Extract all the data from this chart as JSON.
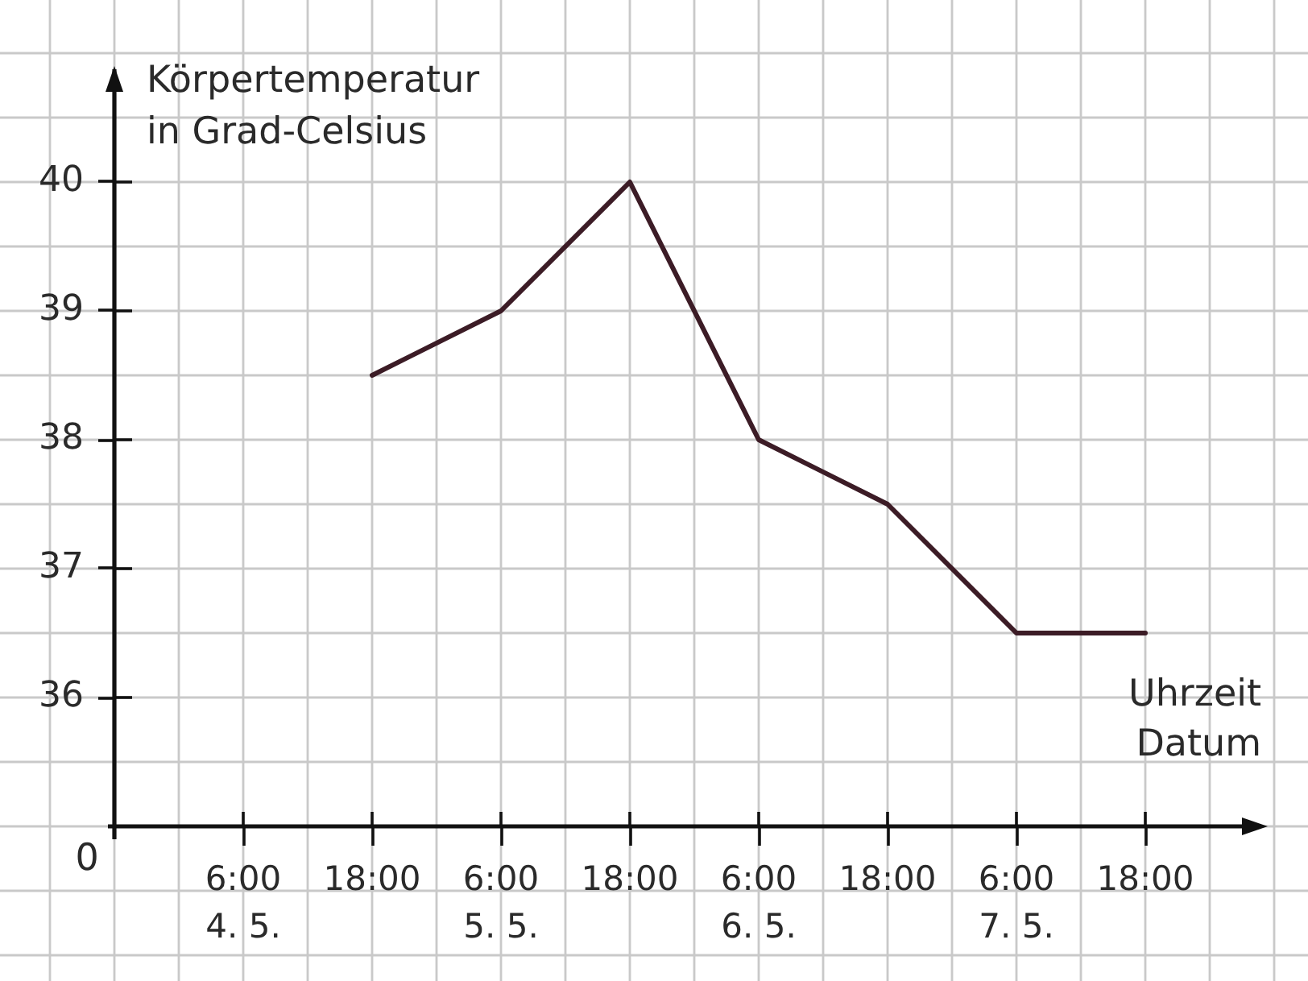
{
  "chart_data": {
    "type": "line",
    "xlabel": "Uhrzeit\nDatum",
    "ylabel": "Körpertemperatur\nin Grad-Celsius",
    "annotations": [
      "0"
    ],
    "categories": [
      "6:00\n4. 5.",
      "18:00",
      "6:00\n5. 5.",
      "18:00",
      "6:00\n6. 5.",
      "18:00",
      "6:00\n7. 5.",
      "18:00"
    ],
    "values": [
      null,
      38.5,
      39,
      40,
      38,
      37.5,
      36.5,
      36.5
    ],
    "color": "#3c1c26",
    "ylim": [
      35,
      40.9
    ],
    "yticks": [
      36,
      37,
      38,
      39,
      40
    ],
    "grid": true,
    "legend": false,
    "marker": "none"
  }
}
